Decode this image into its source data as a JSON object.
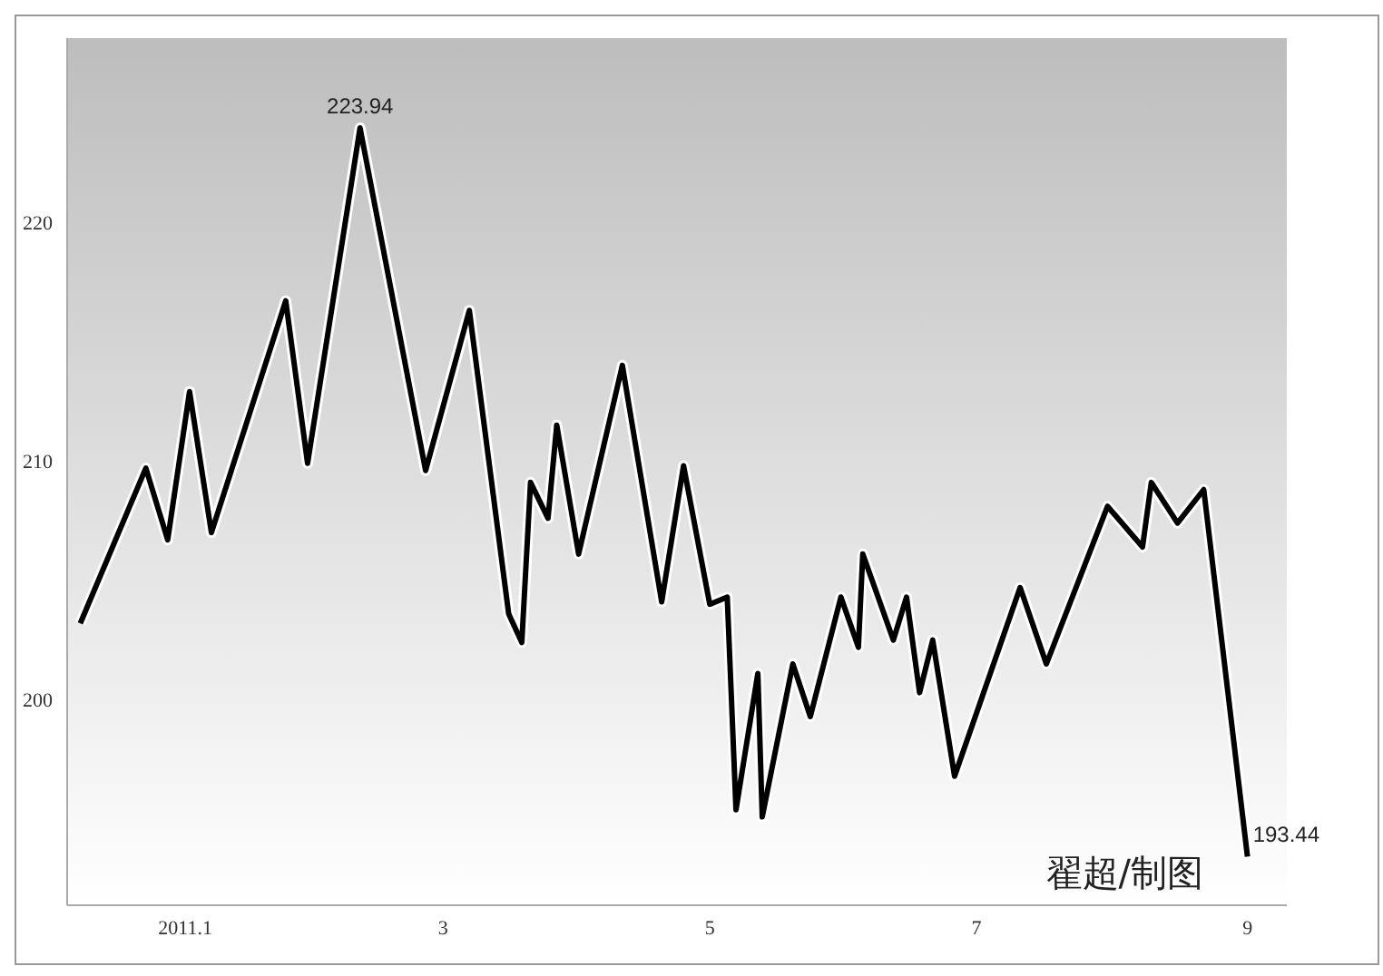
{
  "chart_data": {
    "type": "line",
    "x": [
      "2010-12-08",
      "2010-12-23",
      "2010-12-28",
      "2011-01-02",
      "2011-01-07",
      "2011-01-24",
      "2011-01-29",
      "2011-02-10",
      "2011-02-25",
      "2011-03-07",
      "2011-03-16",
      "2011-03-19",
      "2011-03-21",
      "2011-03-25",
      "2011-03-27",
      "2011-04-01",
      "2011-04-11",
      "2011-04-20",
      "2011-04-25",
      "2011-05-01",
      "2011-05-05",
      "2011-05-07",
      "2011-05-12",
      "2011-05-13",
      "2011-05-20",
      "2011-05-24",
      "2011-05-31",
      "2011-06-04",
      "2011-06-05",
      "2011-06-12",
      "2011-06-15",
      "2011-06-18",
      "2011-06-21",
      "2011-06-26",
      "2011-07-11",
      "2011-07-17",
      "2011-07-31",
      "2011-08-08",
      "2011-08-10",
      "2011-08-16",
      "2011-08-22",
      "2011-09-01"
    ],
    "series": [
      {
        "color": "#000000",
        "values": [
          203.2,
          209.7,
          206.7,
          212.9,
          207.0,
          216.7,
          209.9,
          223.94,
          209.6,
          216.3,
          203.6,
          202.4,
          209.1,
          207.6,
          211.5,
          206.1,
          214.0,
          204.1,
          209.8,
          204.0,
          204.3,
          195.4,
          201.1,
          195.1,
          201.5,
          199.3,
          204.3,
          202.2,
          206.1,
          202.5,
          204.3,
          200.3,
          202.5,
          196.8,
          204.7,
          201.5,
          208.1,
          206.4,
          209.1,
          207.4,
          208.8,
          193.44
        ],
        "value_labels": [
          null,
          null,
          null,
          null,
          null,
          null,
          null,
          "223.94",
          null,
          null,
          null,
          null,
          null,
          null,
          null,
          null,
          null,
          null,
          null,
          null,
          null,
          null,
          null,
          null,
          null,
          null,
          null,
          null,
          null,
          null,
          null,
          null,
          null,
          null,
          null,
          null,
          null,
          null,
          null,
          null,
          null,
          "193.44"
        ]
      }
    ],
    "xlim": [
      "2010-12-05",
      "2011-09-10"
    ],
    "xticks": [
      {
        "value": "2011-01-01",
        "label": "2011.1"
      },
      {
        "value": "2011-03-01",
        "label": "3"
      },
      {
        "value": "2011-05-01",
        "label": "5"
      },
      {
        "value": "2011-07-01",
        "label": "7"
      },
      {
        "value": "2011-09-01",
        "label": "9"
      }
    ],
    "ylim": [
      191.4,
      227.7
    ],
    "yticks": [
      200,
      210,
      220
    ],
    "marker": "none",
    "line_style": "solid",
    "annotations": [
      "翟超/制图"
    ]
  }
}
